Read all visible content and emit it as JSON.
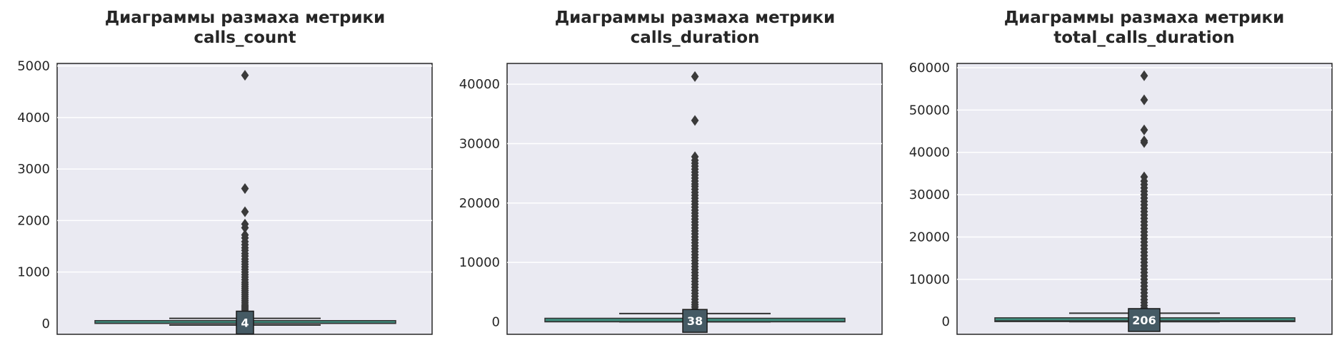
{
  "chart_data": [
    {
      "type": "box",
      "title_line1": "Диаграммы размаха метрики",
      "title_line2": "calls_count",
      "ylim": [
        -210,
        5050
      ],
      "yticks": [
        0,
        1000,
        2000,
        3000,
        4000,
        5000
      ],
      "box": {
        "whisker_low": -30,
        "q1": 1,
        "median": 4,
        "q3": 32,
        "whisker_high": 100,
        "median_label": "4"
      },
      "outliers": [
        4820,
        2620,
        2170,
        1930,
        1860,
        1720,
        1660,
        1590,
        1530,
        1470,
        1420,
        1360,
        1310,
        1250,
        1200,
        1150,
        1100,
        1050,
        1000,
        950,
        900,
        850,
        800,
        760,
        720,
        680,
        640,
        600,
        560,
        520,
        480,
        440,
        400,
        360,
        330,
        300,
        270,
        240,
        210,
        180,
        150,
        125,
        110
      ],
      "grid": true,
      "colors": {
        "box": "#3e8e7e",
        "median_box": "#455a64",
        "background": "#eaeaf2"
      }
    },
    {
      "type": "box",
      "title_line1": "Диаграммы размаха метрики",
      "title_line2": "calls_duration",
      "ylim": [
        -2100,
        43500
      ],
      "yticks": [
        0,
        10000,
        20000,
        30000,
        40000
      ],
      "box": {
        "whisker_low": 0,
        "q1": 0,
        "median": 38,
        "q3": 600,
        "whisker_high": 1400,
        "median_label": "38"
      },
      "outliers": [
        41300,
        33900,
        27800,
        27200,
        26700,
        26200,
        25700,
        25200,
        24700,
        24200,
        23700,
        23200,
        22800,
        22300,
        21800,
        21300,
        20800,
        20300,
        19800,
        19300,
        18800,
        18300,
        17800,
        17300,
        16800,
        16300,
        15800,
        15300,
        14800,
        14300,
        13800,
        13300,
        12800,
        12300,
        11800,
        11300,
        10800,
        10300,
        9800,
        9300,
        8800,
        8300,
        7800,
        7300,
        6800,
        6300,
        5800,
        5300,
        4800,
        4300,
        3800,
        3300,
        2900,
        2500,
        2100,
        1700
      ],
      "grid": true,
      "colors": {
        "box": "#3e8e7e",
        "median_box": "#455a64",
        "background": "#eaeaf2"
      }
    },
    {
      "type": "box",
      "title_line1": "Диаграммы размаха метрики",
      "title_line2": "total_calls_duration",
      "ylim": [
        -3000,
        61000
      ],
      "yticks": [
        0,
        10000,
        20000,
        30000,
        40000,
        50000,
        60000
      ],
      "box": {
        "whisker_low": 0,
        "q1": 0,
        "median": 206,
        "q3": 900,
        "whisker_high": 2000,
        "median_label": "206"
      },
      "outliers": [
        58100,
        52400,
        45300,
        42700,
        42300,
        34200,
        33200,
        32400,
        31600,
        30800,
        30000,
        29200,
        28400,
        27600,
        26800,
        26000,
        25200,
        24400,
        23600,
        22800,
        22000,
        21200,
        20400,
        19600,
        18800,
        18000,
        17200,
        16400,
        15600,
        14800,
        14000,
        13200,
        12400,
        11600,
        10800,
        10000,
        9200,
        8400,
        7600,
        6800,
        6000,
        5200,
        4500,
        3800,
        3200,
        2600
      ],
      "grid": true,
      "colors": {
        "box": "#3e8e7e",
        "median_box": "#455a64",
        "background": "#eaeaf2"
      }
    }
  ]
}
